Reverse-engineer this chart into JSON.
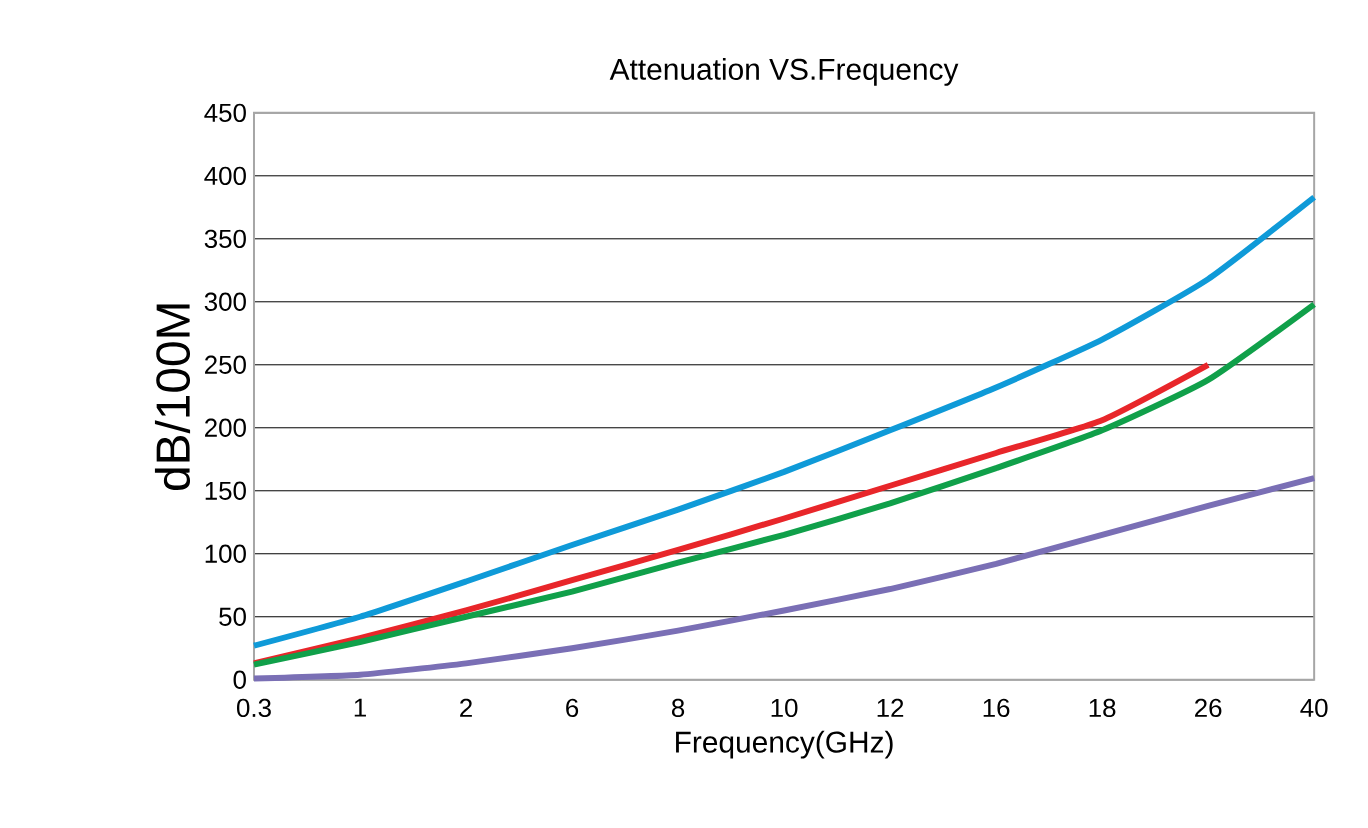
{
  "chart_data": {
    "type": "line",
    "title": "Attenuation VS.Frequency",
    "xlabel": "Frequency(GHz)",
    "ylabel": "dB/100M",
    "categories": [
      "0.3",
      "1",
      "2",
      "6",
      "8",
      "10",
      "12",
      "16",
      "18",
      "26",
      "40"
    ],
    "ylim": [
      0,
      450
    ],
    "yticks": [
      0,
      50,
      100,
      150,
      200,
      250,
      300,
      350,
      400,
      450
    ],
    "grid": "y",
    "marker": "none",
    "line_style": "solid",
    "series": [
      {
        "color": "#0f9ad8",
        "values": [
          27,
          50,
          78,
          107,
          135,
          165,
          198,
          232,
          270,
          318,
          383
        ]
      },
      {
        "color": "#e8262a",
        "values": [
          13,
          33,
          55,
          79,
          103,
          128,
          154,
          180,
          206,
          250,
          null
        ]
      },
      {
        "color": "#10a04a",
        "values": [
          12,
          30,
          50,
          70,
          93,
          115,
          140,
          168,
          198,
          238,
          298
        ]
      },
      {
        "color": "#7a6fb5",
        "values": [
          1,
          4,
          13,
          25,
          39,
          55,
          72,
          92,
          115,
          138,
          160
        ]
      }
    ]
  }
}
